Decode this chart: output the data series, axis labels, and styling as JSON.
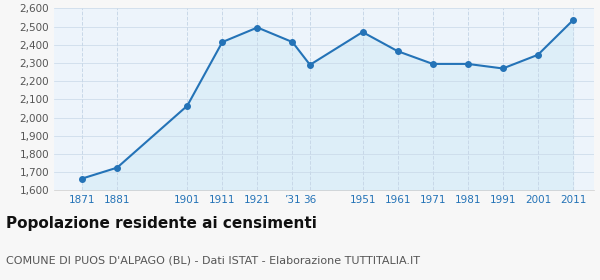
{
  "years": [
    1871,
    1881,
    1901,
    1911,
    1921,
    1931,
    1936,
    1951,
    1961,
    1971,
    1981,
    1991,
    2001,
    2011
  ],
  "population": [
    1665,
    1725,
    2065,
    2415,
    2495,
    2415,
    2290,
    2470,
    2365,
    2295,
    2295,
    2270,
    2345,
    2535
  ],
  "line_color": "#2473b7",
  "fill_color": "#ddeef8",
  "marker_color": "#2473b7",
  "fig_bg_color": "#f7f7f7",
  "plot_bg_color": "#edf4fb",
  "ylim_min": 1600,
  "ylim_max": 2600,
  "ytick_step": 100,
  "xlim_min": 1863,
  "xlim_max": 2017,
  "title": "Popolazione residente ai censimenti",
  "subtitle": "COMUNE DI PUOS D'ALPAGO (BL) - Dati ISTAT - Elaborazione TUTTITALIA.IT",
  "title_fontsize": 11,
  "subtitle_fontsize": 8,
  "x_ticks": [
    1871,
    1881,
    1901,
    1911,
    1921,
    1931,
    1936,
    1951,
    1961,
    1971,
    1981,
    1991,
    2001,
    2011
  ],
  "x_labels": [
    "1871",
    "1881",
    "1901",
    "1911",
    "1921",
    "’31",
    "36",
    "1951",
    "1961",
    "1971",
    "1981",
    "1991",
    "2001",
    "2011"
  ]
}
